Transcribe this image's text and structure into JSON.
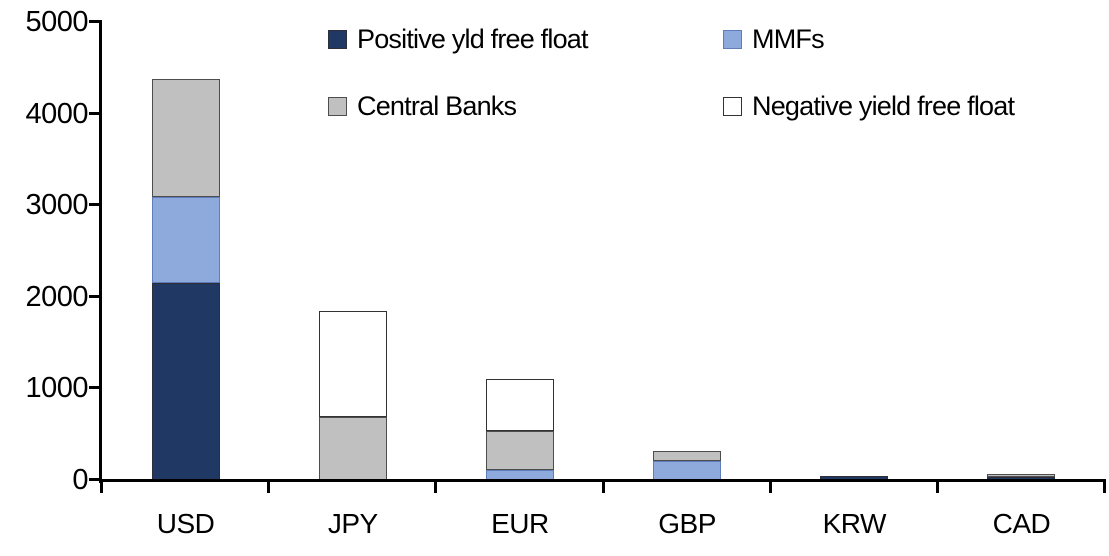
{
  "chart_data": {
    "type": "bar",
    "stacked": true,
    "title": "",
    "xlabel": "",
    "ylabel": "",
    "categories": [
      "USD",
      "JPY",
      "EUR",
      "GBP",
      "KRW",
      "CAD"
    ],
    "series": [
      {
        "name": "Positive yld free float",
        "color": "#1F3864",
        "border_color": "#2E2E38",
        "values": [
          2150,
          0,
          0,
          0,
          40,
          35
        ]
      },
      {
        "name": "MMFs",
        "color": "#8EA9DB",
        "border_color": "#5F7DBA",
        "values": [
          940,
          0,
          110,
          210,
          0,
          0
        ]
      },
      {
        "name": "Central Banks",
        "color": "#C0C0C0",
        "border_color": "#4D4D4D",
        "values": [
          1290,
          690,
          430,
          110,
          0,
          30
        ]
      },
      {
        "name": "Negative yield free float",
        "color": "#FFFFFF",
        "border_color": "#333333",
        "values": [
          0,
          1150,
          560,
          0,
          0,
          0
        ]
      }
    ],
    "totals": [
      4380,
      1840,
      1100,
      320,
      40,
      65
    ],
    "y_axis": {
      "min": 0,
      "max": 5000,
      "tick_interval": 1000,
      "tick_labels": [
        "0",
        "1000",
        "2000",
        "3000",
        "4000",
        "5000"
      ]
    },
    "x_axis": {
      "tick_labels": [
        "USD",
        "JPY",
        "EUR",
        "GBP",
        "KRW",
        "CAD"
      ]
    },
    "legend": {
      "position": "top-inside",
      "columns": 2,
      "entries": [
        "Positive yld free float",
        "MMFs",
        "Central Banks",
        "Negative yield free float"
      ]
    },
    "colors": {
      "background": "#FFFFFF",
      "axis": "#000000",
      "text": "#000000"
    }
  }
}
